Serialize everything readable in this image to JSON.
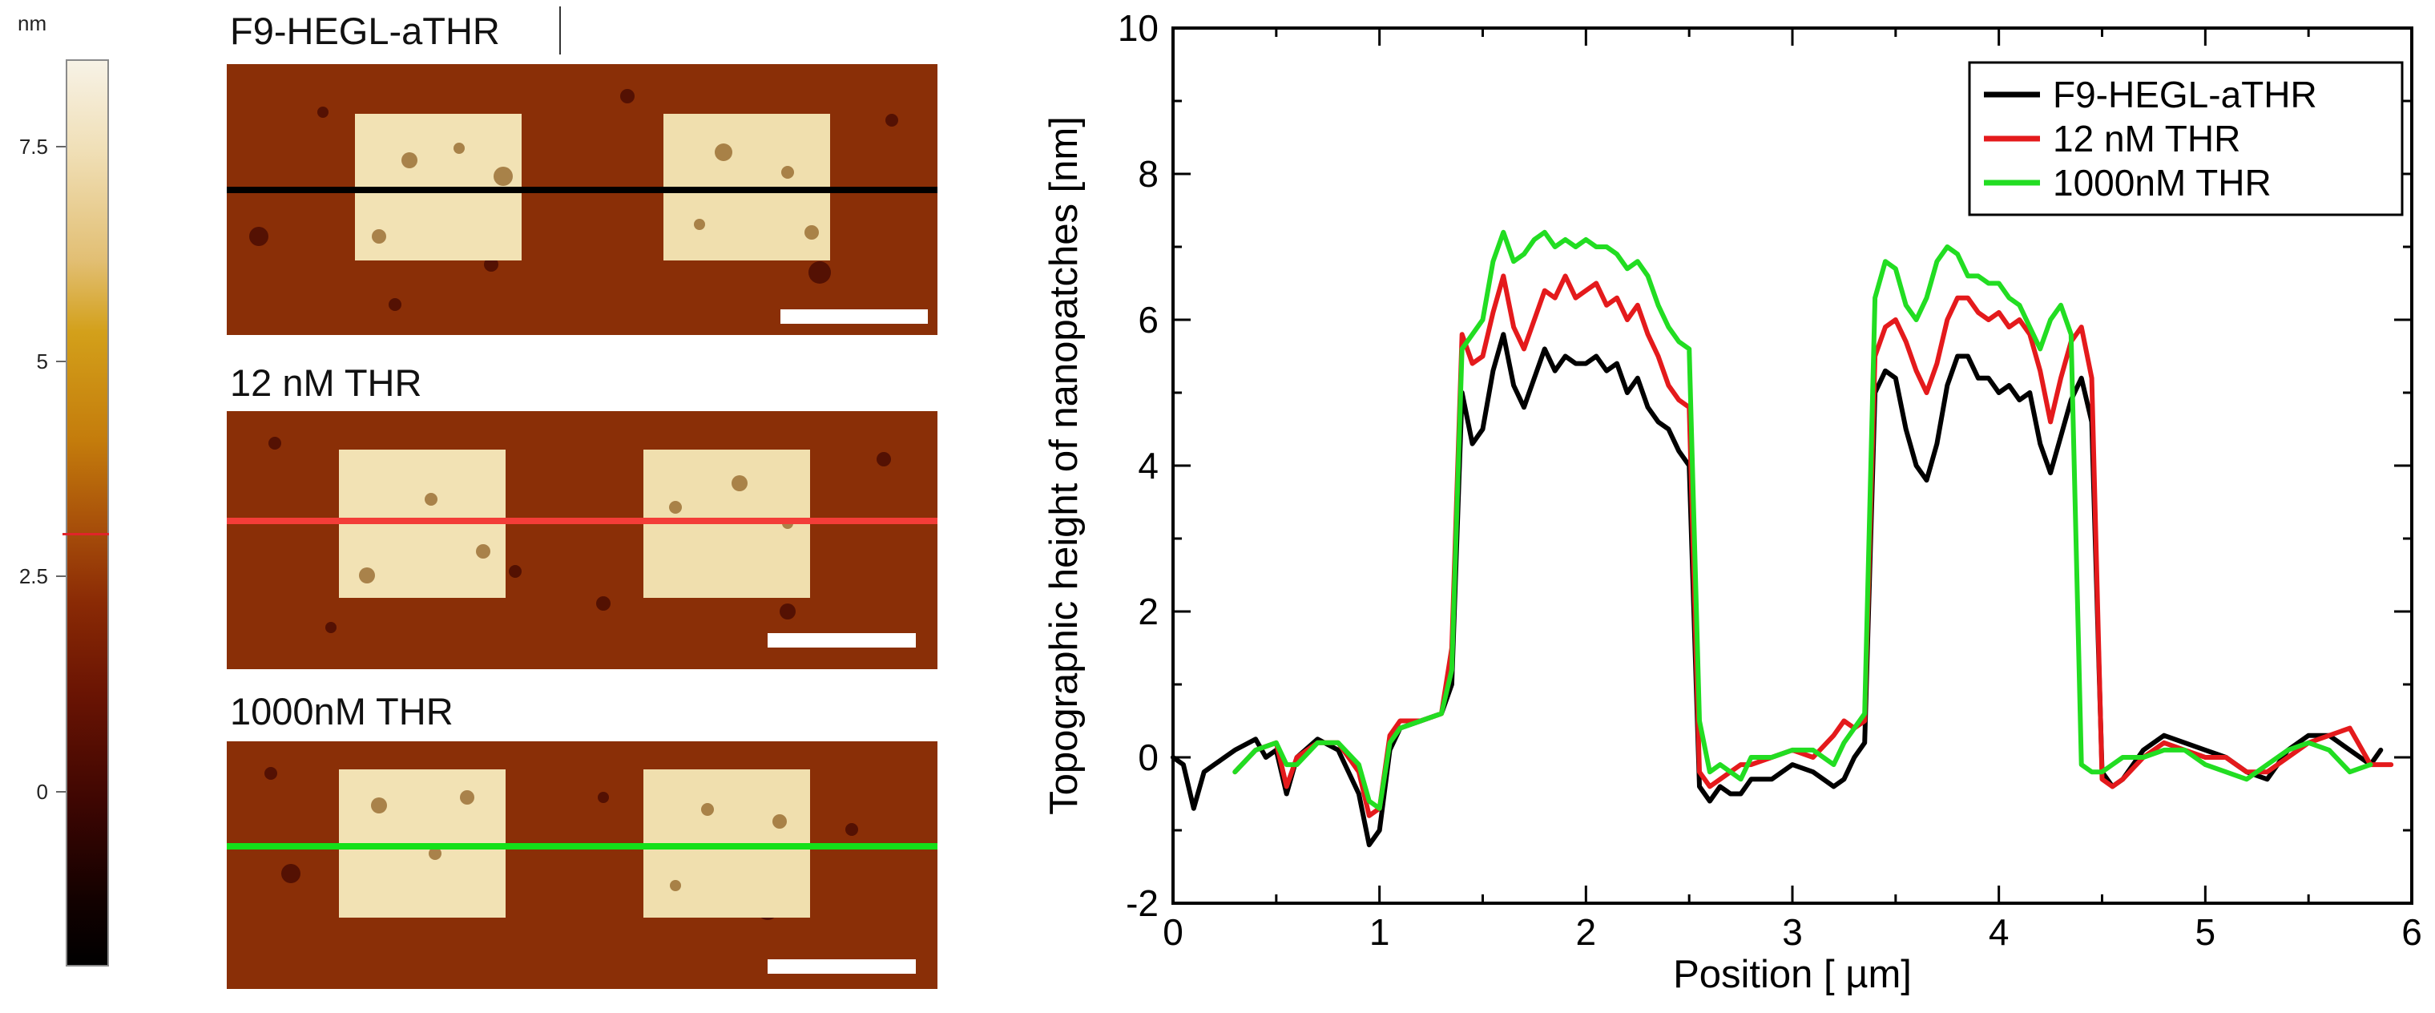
{
  "colorbar": {
    "unit": "nm",
    "ticks": [
      "7.5",
      "5",
      "2.5",
      "0"
    ],
    "tick_values": [
      7.5,
      5,
      2.5,
      0
    ],
    "range": [
      -2.0,
      8.5
    ],
    "marker_value": 3.0,
    "marker_color": "#e0242a"
  },
  "panels": [
    {
      "title": "F9-HEGL-aTHR",
      "line_color": "#000000"
    },
    {
      "title": "12 nM THR",
      "line_color": "#f33d38"
    },
    {
      "title": "1000nM THR",
      "line_color": "#14e01a"
    }
  ],
  "chart_data": {
    "type": "line",
    "xlabel": "Position [ µm]",
    "ylabel": "Topographic height of nanopatches [nm]",
    "xlim": [
      0,
      6
    ],
    "ylim": [
      -2,
      10
    ],
    "xticks": [
      "0",
      "1",
      "2",
      "3",
      "4",
      "5",
      "6"
    ],
    "yticks": [
      "-2",
      "0",
      "2",
      "4",
      "6",
      "8",
      "10"
    ],
    "grid": false,
    "legend_position": "top-right",
    "series": [
      {
        "name": "F9-HEGL-aTHR",
        "color": "#000000",
        "x": [
          0.0,
          0.05,
          0.1,
          0.15,
          0.2,
          0.3,
          0.4,
          0.45,
          0.5,
          0.55,
          0.6,
          0.7,
          0.8,
          0.9,
          0.95,
          1.0,
          1.05,
          1.1,
          1.2,
          1.3,
          1.35,
          1.4,
          1.45,
          1.5,
          1.55,
          1.6,
          1.65,
          1.7,
          1.75,
          1.8,
          1.85,
          1.9,
          1.95,
          2.0,
          2.05,
          2.1,
          2.15,
          2.2,
          2.25,
          2.3,
          2.35,
          2.4,
          2.45,
          2.5,
          2.55,
          2.6,
          2.65,
          2.7,
          2.75,
          2.8,
          2.9,
          3.0,
          3.1,
          3.2,
          3.25,
          3.3,
          3.35,
          3.4,
          3.45,
          3.5,
          3.55,
          3.6,
          3.65,
          3.7,
          3.75,
          3.8,
          3.85,
          3.9,
          3.95,
          4.0,
          4.05,
          4.1,
          4.15,
          4.2,
          4.25,
          4.3,
          4.35,
          4.4,
          4.45,
          4.5,
          4.55,
          4.6,
          4.7,
          4.8,
          4.9,
          5.0,
          5.1,
          5.2,
          5.3,
          5.4,
          5.5,
          5.6,
          5.7,
          5.8,
          5.85
        ],
        "y": [
          0.0,
          -0.1,
          -0.7,
          -0.2,
          -0.1,
          0.1,
          0.25,
          0.0,
          0.1,
          -0.5,
          0.0,
          0.25,
          0.1,
          -0.5,
          -1.2,
          -1.0,
          0.1,
          0.4,
          0.5,
          0.6,
          1.0,
          5.0,
          4.3,
          4.5,
          5.3,
          5.8,
          5.1,
          4.8,
          5.2,
          5.6,
          5.3,
          5.5,
          5.4,
          5.4,
          5.5,
          5.3,
          5.4,
          5.0,
          5.2,
          4.8,
          4.6,
          4.5,
          4.2,
          4.0,
          -0.4,
          -0.6,
          -0.4,
          -0.5,
          -0.5,
          -0.3,
          -0.3,
          -0.1,
          -0.2,
          -0.4,
          -0.3,
          0.0,
          0.2,
          5.0,
          5.3,
          5.2,
          4.5,
          4.0,
          3.8,
          4.3,
          5.1,
          5.5,
          5.5,
          5.2,
          5.2,
          5.0,
          5.1,
          4.9,
          5.0,
          4.3,
          3.9,
          4.4,
          4.9,
          5.2,
          4.6,
          -0.2,
          -0.4,
          -0.3,
          0.1,
          0.3,
          0.2,
          0.1,
          0.0,
          -0.2,
          -0.3,
          0.1,
          0.3,
          0.3,
          0.1,
          -0.1,
          0.1
        ]
      },
      {
        "name": "12 nM THR",
        "color": "#e41a1c",
        "x": [
          0.3,
          0.4,
          0.5,
          0.55,
          0.6,
          0.7,
          0.8,
          0.9,
          0.95,
          1.0,
          1.05,
          1.1,
          1.2,
          1.3,
          1.35,
          1.4,
          1.45,
          1.5,
          1.55,
          1.6,
          1.65,
          1.7,
          1.75,
          1.8,
          1.85,
          1.9,
          1.95,
          2.0,
          2.05,
          2.1,
          2.15,
          2.2,
          2.25,
          2.3,
          2.35,
          2.4,
          2.45,
          2.5,
          2.55,
          2.6,
          2.65,
          2.7,
          2.75,
          2.8,
          2.9,
          3.0,
          3.1,
          3.2,
          3.25,
          3.3,
          3.35,
          3.4,
          3.45,
          3.5,
          3.55,
          3.6,
          3.65,
          3.7,
          3.75,
          3.8,
          3.85,
          3.9,
          3.95,
          4.0,
          4.05,
          4.1,
          4.15,
          4.2,
          4.25,
          4.3,
          4.35,
          4.4,
          4.45,
          4.5,
          4.55,
          4.6,
          4.7,
          4.8,
          4.9,
          5.0,
          5.1,
          5.2,
          5.3,
          5.4,
          5.5,
          5.6,
          5.7,
          5.8,
          5.9
        ],
        "y": [
          -0.2,
          0.1,
          0.2,
          -0.4,
          0.0,
          0.2,
          0.2,
          -0.2,
          -0.8,
          -0.7,
          0.3,
          0.5,
          0.5,
          0.6,
          1.5,
          5.8,
          5.4,
          5.5,
          6.1,
          6.6,
          5.9,
          5.6,
          6.0,
          6.4,
          6.3,
          6.6,
          6.3,
          6.4,
          6.5,
          6.2,
          6.3,
          6.0,
          6.2,
          5.8,
          5.5,
          5.1,
          4.9,
          4.8,
          -0.2,
          -0.4,
          -0.3,
          -0.2,
          -0.1,
          -0.1,
          0.0,
          0.1,
          0.0,
          0.3,
          0.5,
          0.4,
          0.5,
          5.5,
          5.9,
          6.0,
          5.7,
          5.3,
          5.0,
          5.4,
          6.0,
          6.3,
          6.3,
          6.1,
          6.0,
          6.1,
          5.9,
          6.0,
          5.8,
          5.3,
          4.6,
          5.2,
          5.7,
          5.9,
          5.2,
          -0.3,
          -0.4,
          -0.3,
          0.0,
          0.2,
          0.1,
          0.0,
          0.0,
          -0.2,
          -0.2,
          0.0,
          0.2,
          0.3,
          0.4,
          -0.1,
          -0.1
        ]
      },
      {
        "name": "1000nM THR",
        "color": "#22dd22",
        "x": [
          0.3,
          0.4,
          0.5,
          0.55,
          0.6,
          0.7,
          0.8,
          0.9,
          0.95,
          1.0,
          1.05,
          1.1,
          1.2,
          1.3,
          1.35,
          1.4,
          1.45,
          1.5,
          1.55,
          1.6,
          1.65,
          1.7,
          1.75,
          1.8,
          1.85,
          1.9,
          1.95,
          2.0,
          2.05,
          2.1,
          2.15,
          2.2,
          2.25,
          2.3,
          2.35,
          2.4,
          2.45,
          2.5,
          2.55,
          2.6,
          2.65,
          2.7,
          2.75,
          2.8,
          2.9,
          3.0,
          3.1,
          3.2,
          3.25,
          3.3,
          3.35,
          3.4,
          3.45,
          3.5,
          3.55,
          3.6,
          3.65,
          3.7,
          3.75,
          3.8,
          3.85,
          3.9,
          3.95,
          4.0,
          4.05,
          4.1,
          4.15,
          4.2,
          4.25,
          4.3,
          4.35,
          4.4,
          4.45,
          4.5,
          4.55,
          4.6,
          4.7,
          4.8,
          4.9,
          5.0,
          5.1,
          5.2,
          5.3,
          5.4,
          5.5,
          5.6,
          5.7,
          5.8
        ],
        "y": [
          -0.2,
          0.1,
          0.2,
          -0.1,
          -0.1,
          0.2,
          0.2,
          -0.1,
          -0.6,
          -0.7,
          0.2,
          0.4,
          0.5,
          0.6,
          1.2,
          5.6,
          5.8,
          6.0,
          6.8,
          7.2,
          6.8,
          6.9,
          7.1,
          7.2,
          7.0,
          7.1,
          7.0,
          7.1,
          7.0,
          7.0,
          6.9,
          6.7,
          6.8,
          6.6,
          6.2,
          5.9,
          5.7,
          5.6,
          0.5,
          -0.2,
          -0.1,
          -0.2,
          -0.3,
          0.0,
          0.0,
          0.1,
          0.1,
          -0.1,
          0.2,
          0.4,
          0.6,
          6.3,
          6.8,
          6.7,
          6.2,
          6.0,
          6.3,
          6.8,
          7.0,
          6.9,
          6.6,
          6.6,
          6.5,
          6.5,
          6.3,
          6.2,
          5.9,
          5.6,
          6.0,
          6.2,
          5.8,
          -0.1,
          -0.2,
          -0.2,
          -0.1,
          0.0,
          0.0,
          0.1,
          0.1,
          -0.1,
          -0.2,
          -0.3,
          -0.1,
          0.1,
          0.2,
          0.1,
          -0.2,
          -0.1
        ]
      }
    ]
  }
}
